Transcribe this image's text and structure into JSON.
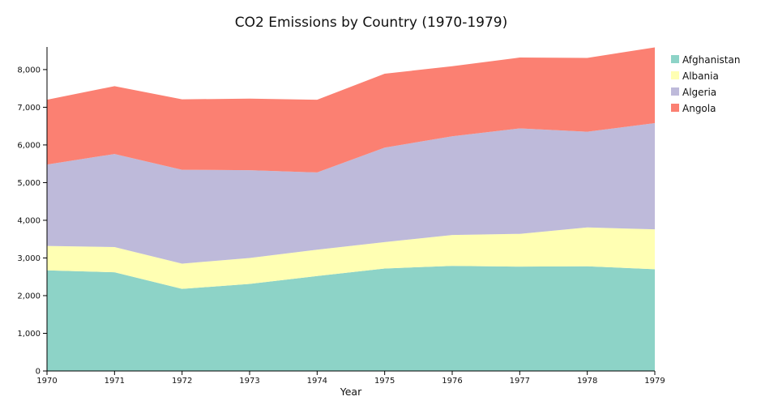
{
  "chart_data": {
    "type": "area",
    "stacked": true,
    "title": "CO2 Emissions by Country (1970-1979)",
    "xlabel": "Year",
    "ylabel": "",
    "x": [
      1970,
      1971,
      1972,
      1973,
      1974,
      1975,
      1976,
      1977,
      1978,
      1979
    ],
    "xlim": [
      1970,
      1979
    ],
    "ylim": [
      0,
      8600
    ],
    "y_ticks": [
      0,
      1000,
      2000,
      3000,
      4000,
      5000,
      6000,
      7000,
      8000
    ],
    "y_tick_labels": [
      "0",
      "1,000",
      "2,000",
      "3,000",
      "4,000",
      "5,000",
      "6,000",
      "7,000",
      "8,000"
    ],
    "x_tick_labels": [
      "1970",
      "1971",
      "1972",
      "1973",
      "1974",
      "1975",
      "1976",
      "1977",
      "1978",
      "1979"
    ],
    "grid": false,
    "legend_position": "top-right",
    "series": [
      {
        "name": "Afghanistan",
        "color": "#8dd3c7",
        "values": [
          2670,
          2620,
          2180,
          2310,
          2520,
          2720,
          2790,
          2770,
          2780,
          2700
        ]
      },
      {
        "name": "Albania",
        "color": "#ffffb3",
        "values": [
          650,
          670,
          670,
          690,
          700,
          700,
          820,
          870,
          1030,
          1060
        ]
      },
      {
        "name": "Algeria",
        "color": "#bebada",
        "values": [
          2160,
          2470,
          2490,
          2330,
          2050,
          2510,
          2620,
          2800,
          2540,
          2820
        ]
      },
      {
        "name": "Angola",
        "color": "#fb8072",
        "values": [
          1720,
          1800,
          1870,
          1900,
          1930,
          1960,
          1860,
          1880,
          1960,
          2010
        ]
      }
    ]
  }
}
